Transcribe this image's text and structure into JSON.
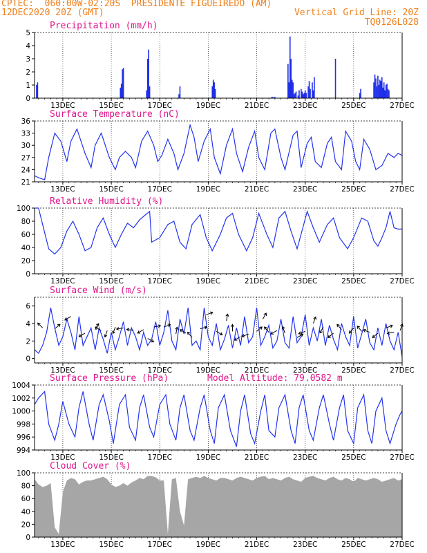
{
  "header": {
    "left_line1": "CPTEC:  060:00W-02:20S  PRESIDENTE FIGUEIREDO (AM)",
    "left_line2": "12DEC2020 20Z (GMT)",
    "right_line2": "Vertical Grid Line: 20Z",
    "right_line3": "TQ0126L028"
  },
  "colors": {
    "header": "#ef7f1a",
    "title": "#e0158c",
    "series": "#2233ee",
    "bars": "#1f2ee8",
    "cloud": "#a6a6a6"
  },
  "x_axis": {
    "ticks": [
      "13DEC",
      "15DEC",
      "17DEC",
      "19DEC",
      "21DEC",
      "23DEC",
      "25DEC",
      "27DEC"
    ],
    "tick_hours": [
      28,
      76,
      124,
      172,
      220,
      268,
      316,
      364
    ],
    "range_hours": [
      0,
      364
    ],
    "start": "12DEC2020 20Z"
  },
  "chart_data": [
    {
      "type": "bar",
      "title": "Precipitation (mm/h)",
      "ylim": [
        0,
        5
      ],
      "yticks": [
        0,
        1,
        2,
        3,
        4,
        5
      ],
      "x": [
        2,
        3,
        85,
        86,
        87,
        88,
        111,
        112,
        113,
        114,
        143,
        144,
        176,
        177,
        178,
        179,
        235,
        236,
        238,
        251,
        252,
        253,
        254,
        255,
        256,
        257,
        258,
        259,
        261,
        262,
        264,
        265,
        266,
        267,
        268,
        269,
        271,
        272,
        273,
        275,
        276,
        277,
        298,
        322,
        323,
        336,
        337,
        338,
        339,
        340,
        341,
        342,
        343,
        344,
        345,
        346,
        347,
        348,
        349,
        350,
        351
      ],
      "values": [
        1.0,
        1.2,
        0.8,
        1.1,
        2.2,
        2.3,
        0.6,
        3.0,
        3.7,
        0.9,
        0.3,
        0.9,
        0.9,
        1.4,
        1.2,
        0.7,
        0.1,
        0.1,
        0.1,
        2.6,
        1.2,
        4.7,
        3.0,
        1.4,
        1.2,
        0.3,
        0.4,
        0.5,
        0.2,
        0.6,
        0.7,
        0.5,
        0.3,
        0.4,
        0.6,
        0.4,
        0.9,
        1.3,
        0.7,
        1.2,
        0.6,
        1.6,
        3.0,
        0.4,
        0.7,
        1.2,
        1.8,
        1.5,
        0.9,
        1.7,
        1.0,
        1.4,
        1.3,
        1.6,
        0.8,
        1.2,
        0.6,
        1.0,
        1.1,
        0.7,
        0.6
      ]
    },
    {
      "type": "line",
      "title": "Surface Temperature (nC)",
      "ylim": [
        21,
        36
      ],
      "yticks": [
        21,
        24,
        27,
        30,
        33,
        36
      ],
      "x": [
        0,
        4,
        10,
        14,
        20,
        26,
        32,
        36,
        42,
        50,
        56,
        60,
        66,
        74,
        80,
        84,
        90,
        96,
        100,
        106,
        112,
        118,
        122,
        126,
        132,
        138,
        142,
        148,
        154,
        158,
        162,
        168,
        174,
        178,
        184,
        190,
        196,
        200,
        206,
        212,
        218,
        222,
        228,
        234,
        238,
        244,
        248,
        256,
        260,
        264,
        270,
        274,
        278,
        284,
        290,
        294,
        298,
        304,
        308,
        314,
        318,
        322,
        326,
        332,
        338,
        344,
        350,
        356,
        360,
        364
      ],
      "values": [
        22.5,
        22.0,
        21.5,
        27.0,
        33.0,
        31.0,
        26.0,
        31.0,
        34.0,
        28.0,
        24.5,
        30.0,
        33.0,
        27.0,
        24.0,
        27.0,
        28.5,
        27.0,
        24.5,
        31.0,
        33.5,
        30.0,
        26.0,
        27.5,
        31.5,
        28.0,
        24.0,
        28.0,
        35.0,
        32.0,
        26.0,
        31.0,
        34.0,
        27.0,
        23.0,
        30.0,
        34.0,
        28.0,
        23.5,
        29.5,
        33.5,
        27.0,
        24.0,
        33.0,
        34.0,
        27.0,
        24.0,
        32.5,
        33.5,
        24.5,
        30.5,
        32.0,
        26.0,
        24.5,
        30.5,
        32.0,
        26.0,
        24.0,
        33.5,
        31.0,
        26.0,
        24.0,
        31.5,
        29.0,
        24.0,
        25.0,
        28.0,
        27.0,
        28.0,
        27.5
      ]
    },
    {
      "type": "line",
      "title": "Relative Humidity (%)",
      "ylim": [
        0,
        100
      ],
      "yticks": [
        0,
        20,
        40,
        60,
        80,
        100
      ],
      "x": [
        0,
        4,
        8,
        14,
        20,
        26,
        32,
        38,
        44,
        50,
        56,
        62,
        68,
        74,
        80,
        86,
        92,
        98,
        104,
        110,
        114,
        116,
        124,
        132,
        138,
        144,
        150,
        156,
        164,
        170,
        176,
        184,
        190,
        196,
        202,
        210,
        216,
        222,
        230,
        236,
        242,
        248,
        254,
        260,
        266,
        270,
        276,
        282,
        290,
        296,
        302,
        310,
        316,
        324,
        330,
        336,
        340,
        344,
        348,
        352,
        356,
        360,
        364
      ],
      "values": [
        100,
        100,
        75,
        38,
        30,
        40,
        65,
        80,
        60,
        35,
        40,
        70,
        85,
        60,
        40,
        60,
        77,
        70,
        82,
        90,
        95,
        48,
        55,
        75,
        80,
        48,
        38,
        75,
        90,
        55,
        35,
        60,
        85,
        92,
        60,
        35,
        55,
        92,
        60,
        40,
        85,
        95,
        65,
        38,
        72,
        95,
        70,
        48,
        75,
        85,
        55,
        38,
        55,
        85,
        80,
        50,
        42,
        55,
        70,
        95,
        70,
        68,
        68
      ]
    },
    {
      "type": "line",
      "title": "Surface Wind (m/s)",
      "ylim": [
        -0.5,
        7
      ],
      "yticks": [
        0,
        2,
        4,
        6
      ],
      "x": [
        0,
        4,
        8,
        12,
        16,
        20,
        24,
        28,
        32,
        36,
        40,
        44,
        48,
        52,
        56,
        60,
        64,
        68,
        72,
        76,
        80,
        84,
        88,
        92,
        96,
        100,
        104,
        108,
        112,
        116,
        120,
        124,
        128,
        132,
        136,
        140,
        144,
        148,
        152,
        156,
        160,
        164,
        168,
        172,
        176,
        180,
        184,
        188,
        192,
        196,
        200,
        204,
        208,
        212,
        216,
        220,
        224,
        228,
        232,
        236,
        240,
        244,
        248,
        252,
        256,
        260,
        264,
        268,
        272,
        276,
        280,
        284,
        288,
        292,
        296,
        300,
        304,
        308,
        312,
        316,
        320,
        324,
        328,
        332,
        336,
        340,
        344,
        348,
        352,
        356,
        360,
        364
      ],
      "values": [
        1.0,
        0.6,
        1.5,
        3.0,
        5.8,
        3.5,
        1.5,
        2.5,
        4.5,
        3.0,
        1.0,
        4.8,
        1.5,
        2.5,
        3.5,
        1.0,
        3.5,
        2.2,
        0.6,
        3.0,
        1.0,
        2.5,
        4.2,
        1.5,
        3.5,
        2.5,
        1.0,
        3.0,
        1.5,
        2.2,
        4.2,
        1.5,
        3.0,
        5.5,
        2.0,
        1.0,
        4.5,
        2.8,
        5.8,
        1.5,
        2.0,
        1.0,
        5.8,
        2.5,
        1.5,
        4.0,
        1.0,
        2.2,
        3.8,
        1.2,
        3.5,
        1.5,
        4.8,
        1.8,
        2.5,
        5.8,
        1.5,
        2.5,
        3.8,
        1.2,
        2.0,
        4.5,
        1.8,
        1.2,
        4.8,
        1.8,
        2.5,
        5.0,
        1.5,
        3.5,
        2.0,
        4.5,
        1.5,
        3.8,
        2.2,
        1.0,
        4.0,
        2.5,
        1.5,
        4.8,
        1.2,
        2.8,
        4.5,
        1.8,
        1.0,
        3.5,
        1.5,
        4.0,
        2.0,
        1.0,
        3.0,
        0.2
      ],
      "vectors": {
        "x": [
          8,
          20,
          36,
          50,
          60,
          66,
          72,
          80,
          88,
          98,
          108,
          112,
          118,
          128,
          140,
          150,
          156,
          164,
          170,
          180,
          190,
          196,
          204,
          212,
          220,
          226,
          232,
          240,
          248,
          260,
          268,
          276,
          286,
          296,
          304,
          316,
          324,
          332,
          340,
          348,
          356,
          362
        ],
        "speed": [
          3.5,
          3.4,
          4.8,
          2.9,
          3.3,
          3.2,
          3.2,
          3.6,
          3.5,
          3.2,
          3.3,
          2.3,
          3.6,
          3.6,
          2.8,
          2.9,
          2.4,
          3.4,
          5.0,
          3.1,
          4.3,
          3.1,
          2.5,
          2.8,
          3.1,
          4.5,
          3.0,
          3.2,
          2.9,
          2.4,
          3.1,
          4.0,
          3.6,
          2.9,
          3.3,
          3.5,
          3.1,
          3.0,
          2.9,
          3.5,
          3.0,
          3.2
        ],
        "dir_deg": [
          135,
          40,
          210,
          210,
          60,
          150,
          250,
          250,
          190,
          170,
          210,
          330,
          10,
          20,
          80,
          150,
          130,
          15,
          20,
          330,
          80,
          90,
          210,
          200,
          40,
          60,
          130,
          210,
          110,
          30,
          200,
          70,
          240,
          220,
          130,
          230,
          130,
          160,
          220,
          20,
          190,
          70
        ]
      }
    },
    {
      "type": "line",
      "title": "Surface Pressure (hPa)",
      "annotation": "Model Altitude: 79.0582 m",
      "ylim": [
        994,
        1004
      ],
      "yticks": [
        994,
        996,
        998,
        1000,
        1002,
        1004
      ],
      "x": [
        0,
        4,
        10,
        14,
        20,
        24,
        28,
        34,
        40,
        44,
        48,
        54,
        58,
        64,
        68,
        74,
        78,
        84,
        90,
        94,
        100,
        104,
        108,
        114,
        118,
        124,
        130,
        134,
        140,
        144,
        148,
        154,
        158,
        164,
        168,
        174,
        178,
        182,
        188,
        194,
        200,
        204,
        208,
        214,
        218,
        224,
        228,
        232,
        238,
        242,
        248,
        254,
        258,
        262,
        266,
        272,
        276,
        282,
        286,
        292,
        296,
        302,
        306,
        310,
        316,
        320,
        326,
        330,
        334,
        338,
        344,
        348,
        352,
        358,
        362,
        364
      ],
      "values": [
        1001,
        1002,
        1003,
        998,
        995.5,
        998,
        1001.5,
        998,
        996,
        1000.5,
        1003,
        998,
        995.5,
        1001,
        1002.5,
        998.5,
        995,
        1001,
        1002.5,
        997.5,
        995.5,
        1000.5,
        1002.5,
        997.5,
        996,
        1001,
        1002.5,
        998,
        995.5,
        1000.5,
        1002.5,
        997,
        995.5,
        1000.5,
        1002.5,
        997,
        995,
        1000.5,
        1002.5,
        997,
        994.5,
        1000,
        1002.5,
        996.5,
        995,
        1000,
        1002.5,
        997,
        996,
        1000.5,
        1002.5,
        997,
        995,
        1000.5,
        1002.5,
        997,
        995.5,
        1000.5,
        1002.5,
        998,
        995.5,
        1000.5,
        1002.5,
        997,
        995,
        1000.5,
        1002.5,
        997,
        995,
        1000,
        1002,
        997,
        995,
        998,
        999.5,
        1000
      ]
    },
    {
      "type": "area",
      "title": "Cloud Cover (%)",
      "ylim": [
        0,
        100
      ],
      "yticks": [
        0,
        20,
        40,
        60,
        80,
        100
      ],
      "x": [
        0,
        4,
        8,
        12,
        16,
        20,
        24,
        28,
        32,
        36,
        40,
        44,
        48,
        52,
        56,
        60,
        64,
        68,
        72,
        76,
        80,
        84,
        88,
        92,
        96,
        100,
        104,
        108,
        112,
        116,
        120,
        124,
        128,
        132,
        136,
        140,
        144,
        148,
        152,
        156,
        160,
        164,
        168,
        172,
        176,
        180,
        184,
        188,
        192,
        196,
        200,
        204,
        208,
        212,
        216,
        220,
        224,
        228,
        232,
        236,
        240,
        244,
        248,
        252,
        256,
        260,
        264,
        268,
        272,
        276,
        280,
        284,
        288,
        292,
        296,
        300,
        304,
        308,
        312,
        316,
        320,
        324,
        328,
        332,
        336,
        340,
        344,
        348,
        352,
        356,
        360,
        364
      ],
      "values": [
        90,
        82,
        78,
        80,
        84,
        15,
        5,
        70,
        88,
        92,
        90,
        82,
        86,
        88,
        88,
        90,
        92,
        94,
        90,
        82,
        78,
        80,
        84,
        80,
        85,
        88,
        92,
        90,
        95,
        95,
        93,
        88,
        88,
        5,
        90,
        92,
        40,
        18,
        90,
        92,
        94,
        92,
        95,
        92,
        90,
        88,
        92,
        92,
        90,
        88,
        92,
        94,
        92,
        90,
        88,
        92,
        94,
        95,
        90,
        92,
        90,
        88,
        92,
        94,
        90,
        88,
        86,
        92,
        94,
        95,
        92,
        90,
        88,
        92,
        94,
        90,
        88,
        92,
        90,
        86,
        92,
        90,
        88,
        90,
        92,
        90,
        86,
        88,
        90,
        92,
        88,
        90
      ]
    }
  ]
}
